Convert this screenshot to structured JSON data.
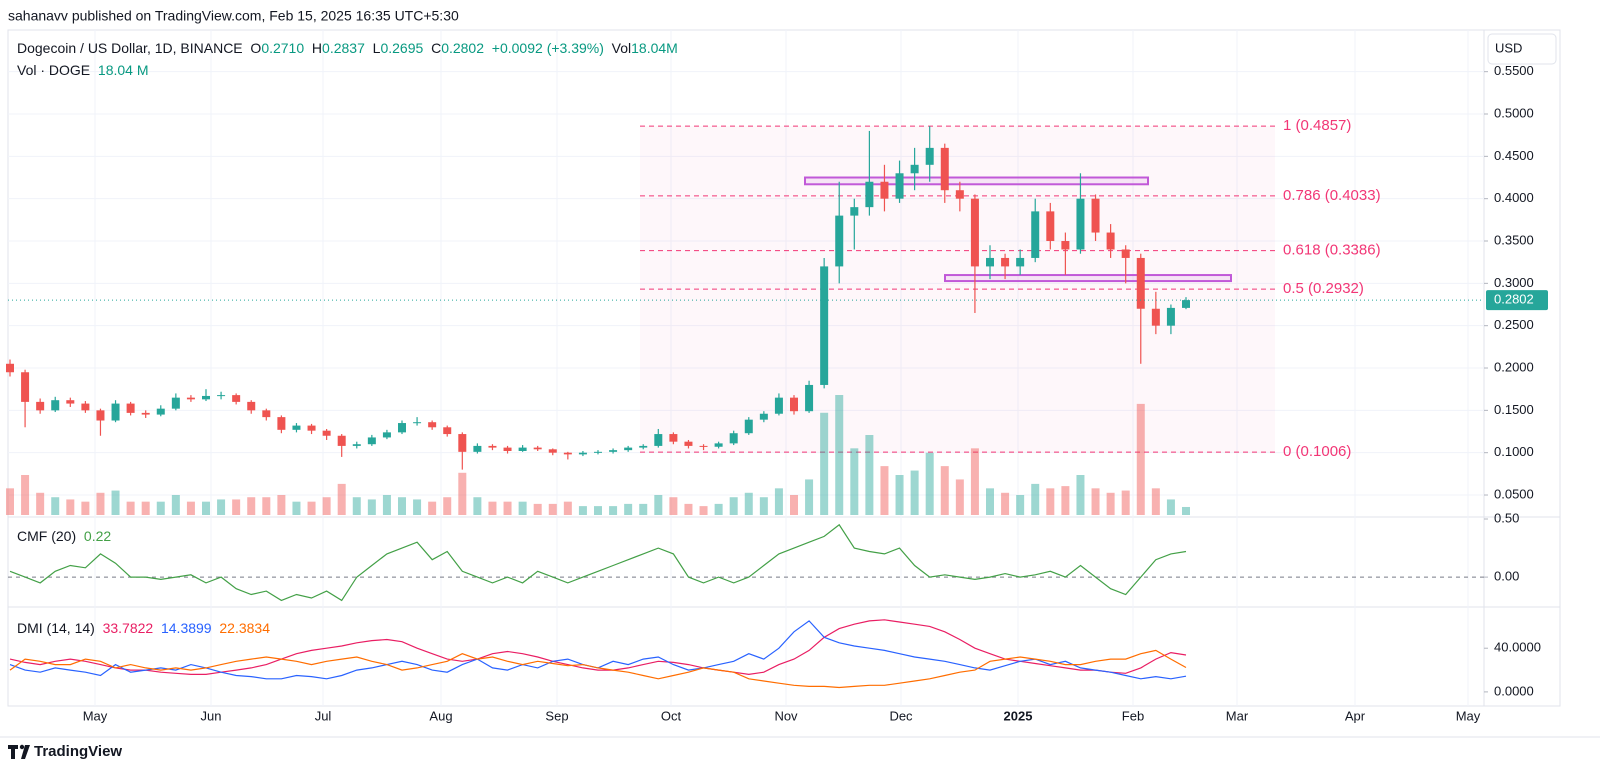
{
  "header": {
    "attribution": "sahanavv published on TradingView.com, Feb 15, 2025 16:35 UTC+5:30",
    "symbol": "Dogecoin / US Dollar, 1D, BINANCE",
    "open_label": "O",
    "open": {
      "value": 0.271,
      "label": "0.2710"
    },
    "high_label": "H",
    "high": {
      "value": 0.2837,
      "label": "0.2837"
    },
    "low_label": "L",
    "low": {
      "value": 0.2695,
      "label": "0.2695"
    },
    "close_label": "C",
    "close": {
      "value": 0.2802,
      "label": "0.2802"
    },
    "change": {
      "value": 0.0092,
      "label": "+0.0092"
    },
    "change_pct": {
      "value": 3.39,
      "label": "(+3.39%)"
    },
    "vol_label": "Vol",
    "vol": {
      "value": 18.04,
      "label": "18.04M"
    },
    "vol_pane_label": "Vol · DOGE",
    "vol_pane": {
      "value": 18.04,
      "label": "18.04 M"
    },
    "currency": "USD",
    "brand": "TradingView"
  },
  "chart_data": [
    {
      "type": "candlestick",
      "up_color": "#26a69a",
      "down_color": "#ef5350",
      "open": [
        0.205,
        0.195,
        0.16,
        0.15,
        0.162,
        0.158,
        0.15,
        0.138,
        0.158,
        0.147,
        0.145,
        0.152,
        0.165,
        0.163,
        0.167,
        0.168,
        0.16,
        0.15,
        0.142,
        0.127,
        0.132,
        0.126,
        0.12,
        0.108,
        0.11,
        0.118,
        0.124,
        0.135,
        0.136,
        0.13,
        0.122,
        0.101,
        0.108,
        0.106,
        0.102,
        0.106,
        0.104,
        0.1,
        0.098,
        0.1,
        0.101,
        0.103,
        0.106,
        0.108,
        0.122,
        0.113,
        0.108,
        0.107,
        0.111,
        0.123,
        0.139,
        0.146,
        0.165,
        0.149,
        0.18,
        0.32,
        0.38,
        0.39,
        0.42,
        0.4,
        0.43,
        0.44,
        0.46,
        0.41,
        0.4,
        0.32,
        0.33,
        0.32,
        0.33,
        0.385,
        0.35,
        0.34,
        0.4,
        0.36,
        0.34,
        0.33,
        0.27,
        0.25,
        0.271
      ],
      "high": [
        0.21,
        0.198,
        0.164,
        0.166,
        0.165,
        0.161,
        0.152,
        0.162,
        0.16,
        0.15,
        0.156,
        0.17,
        0.168,
        0.175,
        0.172,
        0.17,
        0.162,
        0.152,
        0.144,
        0.135,
        0.134,
        0.128,
        0.122,
        0.113,
        0.121,
        0.127,
        0.138,
        0.142,
        0.138,
        0.132,
        0.124,
        0.111,
        0.11,
        0.108,
        0.109,
        0.108,
        0.105,
        0.101,
        0.102,
        0.103,
        0.105,
        0.108,
        0.11,
        0.128,
        0.124,
        0.115,
        0.11,
        0.113,
        0.126,
        0.142,
        0.149,
        0.17,
        0.168,
        0.185,
        0.33,
        0.42,
        0.4,
        0.48,
        0.44,
        0.445,
        0.46,
        0.4857,
        0.465,
        0.42,
        0.405,
        0.345,
        0.335,
        0.34,
        0.4,
        0.395,
        0.36,
        0.43,
        0.405,
        0.37,
        0.345,
        0.335,
        0.29,
        0.275,
        0.2837
      ],
      "low": [
        0.19,
        0.13,
        0.146,
        0.148,
        0.154,
        0.147,
        0.12,
        0.136,
        0.144,
        0.141,
        0.143,
        0.15,
        0.16,
        0.161,
        0.163,
        0.157,
        0.146,
        0.138,
        0.123,
        0.124,
        0.122,
        0.115,
        0.095,
        0.105,
        0.108,
        0.116,
        0.122,
        0.132,
        0.127,
        0.119,
        0.08,
        0.099,
        0.103,
        0.099,
        0.101,
        0.102,
        0.097,
        0.092,
        0.096,
        0.098,
        0.099,
        0.101,
        0.104,
        0.106,
        0.11,
        0.105,
        0.103,
        0.105,
        0.109,
        0.121,
        0.136,
        0.144,
        0.145,
        0.147,
        0.176,
        0.3,
        0.34,
        0.38,
        0.385,
        0.395,
        0.41,
        0.42,
        0.395,
        0.385,
        0.265,
        0.305,
        0.305,
        0.31,
        0.325,
        0.34,
        0.31,
        0.335,
        0.35,
        0.33,
        0.3,
        0.205,
        0.24,
        0.24,
        0.2695
      ],
      "close": [
        0.195,
        0.16,
        0.15,
        0.162,
        0.158,
        0.15,
        0.138,
        0.158,
        0.147,
        0.145,
        0.152,
        0.165,
        0.163,
        0.167,
        0.168,
        0.16,
        0.15,
        0.142,
        0.127,
        0.132,
        0.126,
        0.12,
        0.108,
        0.11,
        0.118,
        0.124,
        0.135,
        0.136,
        0.13,
        0.122,
        0.101,
        0.108,
        0.106,
        0.102,
        0.106,
        0.104,
        0.1,
        0.098,
        0.1,
        0.101,
        0.103,
        0.106,
        0.108,
        0.122,
        0.113,
        0.108,
        0.107,
        0.111,
        0.123,
        0.139,
        0.146,
        0.165,
        0.149,
        0.18,
        0.32,
        0.38,
        0.39,
        0.42,
        0.4,
        0.43,
        0.44,
        0.46,
        0.41,
        0.4,
        0.32,
        0.33,
        0.32,
        0.33,
        0.385,
        0.35,
        0.34,
        0.4,
        0.36,
        0.34,
        0.33,
        0.27,
        0.25,
        0.271,
        0.2802
      ],
      "volume": [
        60,
        90,
        50,
        40,
        35,
        30,
        50,
        55,
        30,
        30,
        30,
        45,
        30,
        30,
        35,
        35,
        40,
        40,
        45,
        30,
        30,
        40,
        70,
        40,
        35,
        45,
        40,
        35,
        30,
        40,
        95,
        40,
        30,
        30,
        30,
        25,
        25,
        30,
        20,
        20,
        20,
        25,
        25,
        45,
        40,
        25,
        20,
        25,
        40,
        50,
        40,
        60,
        45,
        80,
        230,
        270,
        150,
        180,
        110,
        90,
        100,
        140,
        110,
        80,
        150,
        60,
        50,
        45,
        70,
        60,
        65,
        90,
        60,
        50,
        55,
        250,
        60,
        35,
        18.04
      ],
      "ylim": [
        0.0264,
        0.5756
      ],
      "yticks": [
        {
          "value": 0.05,
          "label": "0.0500"
        },
        {
          "value": 0.1,
          "label": "0.1000"
        },
        {
          "value": 0.15,
          "label": "0.1500"
        },
        {
          "value": 0.2,
          "label": "0.2000"
        },
        {
          "value": 0.25,
          "label": "0.2500"
        },
        {
          "value": 0.3,
          "label": "0.3000"
        },
        {
          "value": 0.35,
          "label": "0.3500"
        },
        {
          "value": 0.4,
          "label": "0.4000"
        },
        {
          "value": 0.45,
          "label": "0.4500"
        },
        {
          "value": 0.5,
          "label": "0.5000"
        },
        {
          "value": 0.55,
          "label": "0.5500"
        }
      ],
      "fib_color": "#f23676",
      "fib_levels": [
        {
          "value": 0.4857,
          "label": "1 (0.4857)"
        },
        {
          "value": 0.4033,
          "label": "0.786 (0.4033)"
        },
        {
          "value": 0.3386,
          "label": "0.618 (0.3386)"
        },
        {
          "value": 0.2932,
          "label": "0.5 (0.2932)"
        },
        {
          "value": 0.1006,
          "label": "0 (0.1006)"
        }
      ],
      "zone_color": "#c159d8",
      "zones": [
        {
          "top": 0.425,
          "bottom": 0.417
        },
        {
          "top": 0.3098,
          "bottom": 0.3027
        }
      ],
      "grid": true,
      "xticks": [
        "May",
        "Jun",
        "Jul",
        "Aug",
        "Sep",
        "Oct",
        "Nov",
        "Dec",
        "2025",
        "Feb",
        "Mar",
        "Apr",
        "May"
      ]
    },
    {
      "type": "line",
      "title": "CMF (20)",
      "series": [
        {
          "color": "#43a047",
          "values": [
            0.05,
            0.0,
            -0.05,
            0.05,
            0.1,
            0.08,
            0.2,
            0.12,
            0.0,
            0.0,
            -0.02,
            0.0,
            0.02,
            -0.05,
            0.0,
            -0.1,
            -0.15,
            -0.12,
            -0.2,
            -0.15,
            -0.18,
            -0.12,
            -0.2,
            0.0,
            0.1,
            0.2,
            0.25,
            0.3,
            0.15,
            0.22,
            0.05,
            0.0,
            -0.05,
            0.0,
            -0.05,
            0.05,
            0.0,
            -0.05,
            0.0,
            0.05,
            0.1,
            0.15,
            0.2,
            0.25,
            0.2,
            0.0,
            -0.05,
            0.0,
            -0.05,
            0.0,
            0.1,
            0.2,
            0.25,
            0.3,
            0.35,
            0.45,
            0.25,
            0.22,
            0.2,
            0.25,
            0.1,
            0.0,
            0.02,
            0.0,
            -0.02,
            0.0,
            0.03,
            0.0,
            0.02,
            0.05,
            0.0,
            0.1,
            0.0,
            -0.1,
            -0.15,
            0.0,
            0.15,
            0.2,
            0.22
          ]
        }
      ],
      "ylim": [
        -0.24,
        0.5
      ],
      "yticks": [
        {
          "value": 0.5,
          "label": "0.50"
        },
        {
          "value": 0,
          "label": "0.00"
        }
      ],
      "zero_line": true
    },
    {
      "type": "line",
      "title": "DMI (14, 14)",
      "series": [
        {
          "color": "#e91e63",
          "values": [
            30,
            27,
            25,
            28,
            30,
            28,
            25,
            22,
            20,
            20,
            18,
            17,
            16,
            16,
            18,
            20,
            22,
            25,
            30,
            35,
            38,
            40,
            42,
            45,
            47,
            48,
            46,
            40,
            35,
            30,
            28,
            30,
            35,
            37,
            35,
            32,
            28,
            25,
            22,
            20,
            20,
            22,
            25,
            28,
            27,
            25,
            22,
            20,
            18,
            16,
            18,
            25,
            30,
            38,
            50,
            58,
            62,
            65,
            66,
            64,
            62,
            60,
            55,
            48,
            40,
            35,
            30,
            28,
            26,
            24,
            22,
            20,
            20,
            18,
            17,
            22,
            30,
            36,
            33.7822
          ]
        },
        {
          "color": "#2962ff",
          "values": [
            25,
            20,
            18,
            22,
            20,
            18,
            15,
            25,
            18,
            20,
            22,
            20,
            25,
            22,
            18,
            15,
            14,
            12,
            12,
            15,
            14,
            12,
            15,
            20,
            22,
            25,
            28,
            25,
            20,
            18,
            25,
            30,
            22,
            20,
            25,
            22,
            28,
            30,
            25,
            22,
            28,
            25,
            30,
            32,
            25,
            20,
            22,
            25,
            28,
            35,
            30,
            40,
            55,
            65,
            50,
            45,
            42,
            40,
            38,
            35,
            32,
            30,
            28,
            25,
            22,
            20,
            24,
            28,
            30,
            25,
            28,
            22,
            20,
            18,
            15,
            12,
            14,
            12,
            14.3899
          ]
        },
        {
          "color": "#ff6d00",
          "values": [
            20,
            30,
            28,
            25,
            25,
            30,
            28,
            22,
            25,
            22,
            20,
            22,
            20,
            22,
            25,
            28,
            30,
            32,
            30,
            28,
            25,
            28,
            30,
            32,
            28,
            25,
            20,
            22,
            25,
            28,
            35,
            30,
            32,
            28,
            25,
            28,
            26,
            24,
            25,
            22,
            20,
            18,
            15,
            12,
            15,
            18,
            22,
            20,
            18,
            12,
            10,
            8,
            6,
            5,
            5,
            4,
            5,
            6,
            6,
            8,
            10,
            12,
            15,
            18,
            20,
            28,
            30,
            32,
            30,
            28,
            25,
            25,
            28,
            30,
            30,
            35,
            38,
            30,
            22.3834
          ]
        }
      ],
      "ylim": [
        -12,
        75
      ],
      "yticks": [
        {
          "value": 40,
          "label": "40.0000"
        },
        {
          "value": 0,
          "label": "0.0000"
        }
      ]
    }
  ]
}
